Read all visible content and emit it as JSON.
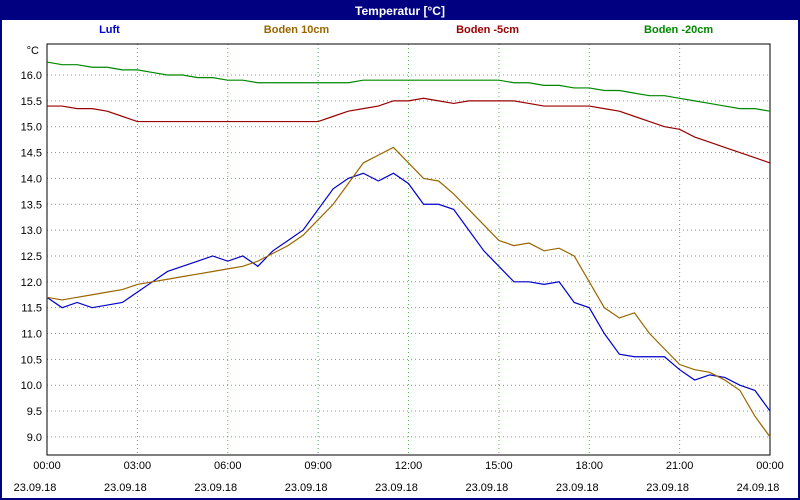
{
  "window": {
    "title": "Temperatur [°C]"
  },
  "legend": [
    {
      "label": "Luft",
      "color": "#0000cc"
    },
    {
      "label": "Boden 10cm",
      "color": "#996600"
    },
    {
      "label": "Boden -5cm",
      "color": "#990000"
    },
    {
      "label": "Boden -20cm",
      "color": "#008800"
    }
  ],
  "chart_data": {
    "type": "line",
    "title": "Temperatur [°C]",
    "ylabel": "°C",
    "xlabel": "",
    "ylim": [
      8.65,
      16.6
    ],
    "yticks": [
      16.0,
      15.5,
      15.0,
      14.5,
      14.0,
      13.5,
      13.0,
      12.5,
      12.0,
      11.5,
      11.0,
      10.5,
      10.0,
      9.5,
      9.0
    ],
    "x_range_hours": [
      0,
      24
    ],
    "step_hours": 0.5,
    "grid": "dotted-green",
    "grid_color": "#4fbf4f",
    "frame_color": "#000000",
    "xticks": [
      {
        "hour": 0,
        "time": "00:00",
        "date": "23.09.18"
      },
      {
        "hour": 3,
        "time": "03:00",
        "date": "23.09.18"
      },
      {
        "hour": 6,
        "time": "06:00",
        "date": "23.09.18"
      },
      {
        "hour": 9,
        "time": "09:00",
        "date": "23.09.18"
      },
      {
        "hour": 12,
        "time": "12:00",
        "date": "23.09.18"
      },
      {
        "hour": 15,
        "time": "15:00",
        "date": "23.09.18"
      },
      {
        "hour": 18,
        "time": "18:00",
        "date": "23.09.18"
      },
      {
        "hour": 21,
        "time": "21:00",
        "date": "23.09.18"
      },
      {
        "hour": 24,
        "time": "00:00",
        "date": "24.09.18"
      }
    ],
    "series": [
      {
        "name": "Luft",
        "color": "#0000cc",
        "values": [
          11.7,
          11.5,
          11.6,
          11.5,
          11.55,
          11.6,
          11.8,
          12.0,
          12.2,
          12.3,
          12.4,
          12.5,
          12.4,
          12.5,
          12.3,
          12.6,
          12.8,
          13.0,
          13.4,
          13.8,
          14.0,
          14.1,
          13.95,
          14.1,
          13.9,
          13.5,
          13.5,
          13.4,
          13.0,
          12.6,
          12.3,
          12.0,
          12.0,
          11.95,
          12.0,
          11.6,
          11.5,
          11.0,
          10.6,
          10.55,
          10.55,
          10.55,
          10.3,
          10.1,
          10.2,
          10.15,
          10.0,
          9.9,
          9.5
        ]
      },
      {
        "name": "Boden 10cm",
        "color": "#996600",
        "values": [
          11.7,
          11.65,
          11.7,
          11.75,
          11.8,
          11.85,
          11.95,
          12.0,
          12.05,
          12.1,
          12.15,
          12.2,
          12.25,
          12.3,
          12.4,
          12.55,
          12.7,
          12.9,
          13.2,
          13.5,
          13.9,
          14.3,
          14.45,
          14.6,
          14.3,
          14.0,
          13.95,
          13.7,
          13.4,
          13.1,
          12.8,
          12.7,
          12.75,
          12.6,
          12.65,
          12.5,
          12.0,
          11.5,
          11.3,
          11.4,
          11.0,
          10.7,
          10.4,
          10.3,
          10.25,
          10.1,
          9.9,
          9.4,
          9.0
        ]
      },
      {
        "name": "Boden -5cm",
        "color": "#990000",
        "values": [
          15.4,
          15.4,
          15.35,
          15.35,
          15.3,
          15.2,
          15.1,
          15.1,
          15.1,
          15.1,
          15.1,
          15.1,
          15.1,
          15.1,
          15.1,
          15.1,
          15.1,
          15.1,
          15.1,
          15.2,
          15.3,
          15.35,
          15.4,
          15.5,
          15.5,
          15.55,
          15.5,
          15.45,
          15.5,
          15.5,
          15.5,
          15.5,
          15.45,
          15.4,
          15.4,
          15.4,
          15.4,
          15.35,
          15.3,
          15.2,
          15.1,
          15.0,
          14.95,
          14.8,
          14.7,
          14.6,
          14.5,
          14.4,
          14.3
        ]
      },
      {
        "name": "Boden -20cm",
        "color": "#008800",
        "values": [
          16.25,
          16.2,
          16.2,
          16.15,
          16.15,
          16.1,
          16.1,
          16.05,
          16.0,
          16.0,
          15.95,
          15.95,
          15.9,
          15.9,
          15.85,
          15.85,
          15.85,
          15.85,
          15.85,
          15.85,
          15.85,
          15.9,
          15.9,
          15.9,
          15.9,
          15.9,
          15.9,
          15.9,
          15.9,
          15.9,
          15.9,
          15.85,
          15.85,
          15.8,
          15.8,
          15.75,
          15.75,
          15.7,
          15.7,
          15.65,
          15.6,
          15.6,
          15.55,
          15.5,
          15.45,
          15.4,
          15.35,
          15.35,
          15.3
        ]
      }
    ]
  }
}
